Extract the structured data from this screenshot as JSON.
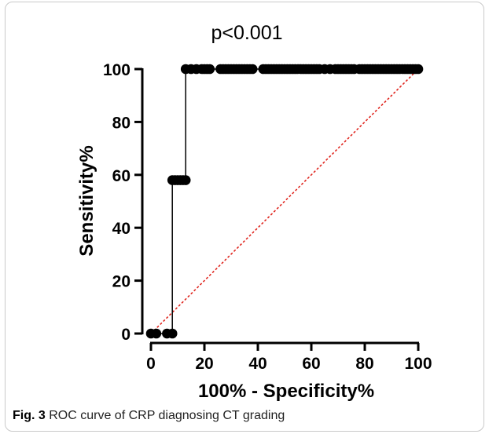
{
  "caption": {
    "label": "Fig. 3",
    "text": "ROC curve of CRP diagnosing CT grading"
  },
  "chart_data": {
    "type": "line",
    "title": "",
    "annotation": "p<0.001",
    "xlabel": "100% - Specificity%",
    "ylabel": "Sensitivity%",
    "xlim": [
      0,
      100
    ],
    "ylim": [
      0,
      100
    ],
    "xticks": [
      "0",
      "20",
      "40",
      "60",
      "80",
      "100"
    ],
    "yticks": [
      "0",
      "20",
      "40",
      "60",
      "80",
      "100"
    ],
    "grid": false,
    "series": [
      {
        "color": "#000000",
        "style": "step-with-markers",
        "x": [
          0,
          2,
          6,
          8,
          8,
          9,
          10,
          11,
          12,
          13,
          13,
          15,
          17,
          19,
          20,
          21,
          22,
          26,
          27,
          28,
          29,
          30,
          31,
          32,
          33,
          34,
          35,
          36,
          37,
          38,
          42,
          43,
          44,
          45,
          46,
          47,
          48,
          49,
          50,
          51,
          52,
          53,
          54,
          55,
          56,
          57,
          58,
          59,
          60,
          61,
          62,
          63,
          65,
          67,
          69,
          70,
          71,
          72,
          73,
          74,
          75,
          76,
          78,
          79,
          80,
          81,
          82,
          83,
          84,
          85,
          86,
          87,
          88,
          89,
          90,
          91,
          92,
          93,
          94,
          95,
          96,
          97,
          98,
          99,
          100
        ],
        "y": [
          0,
          0,
          0,
          0,
          58,
          58,
          58,
          58,
          58,
          58,
          100,
          100,
          100,
          100,
          100,
          100,
          100,
          100,
          100,
          100,
          100,
          100,
          100,
          100,
          100,
          100,
          100,
          100,
          100,
          100,
          100,
          100,
          100,
          100,
          100,
          100,
          100,
          100,
          100,
          100,
          100,
          100,
          100,
          100,
          100,
          100,
          100,
          100,
          100,
          100,
          100,
          100,
          100,
          100,
          100,
          100,
          100,
          100,
          100,
          100,
          100,
          100,
          100,
          100,
          100,
          100,
          100,
          100,
          100,
          100,
          100,
          100,
          100,
          100,
          100,
          100,
          100,
          100,
          100,
          100,
          100,
          100,
          100,
          100,
          100
        ]
      },
      {
        "color": "#e0261f",
        "style": "dotted-reference",
        "x": [
          0,
          100
        ],
        "y": [
          0,
          100
        ]
      }
    ]
  }
}
